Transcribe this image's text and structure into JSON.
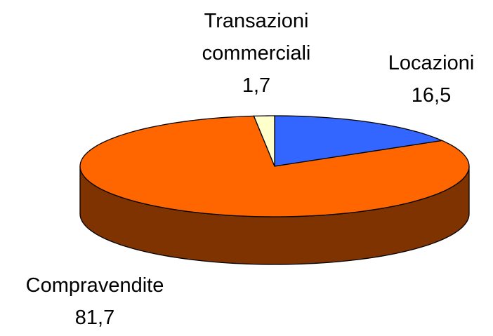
{
  "chart_data": {
    "type": "pie",
    "categories": [
      "Locazioni",
      "Compravendite",
      "Transazioni commerciali"
    ],
    "values": [
      16.5,
      81.7,
      1.7
    ],
    "value_labels": [
      "16,5",
      "81,7",
      "1,7"
    ],
    "colors": [
      "#3366ff",
      "#ff6600",
      "#ffffcc"
    ]
  }
}
